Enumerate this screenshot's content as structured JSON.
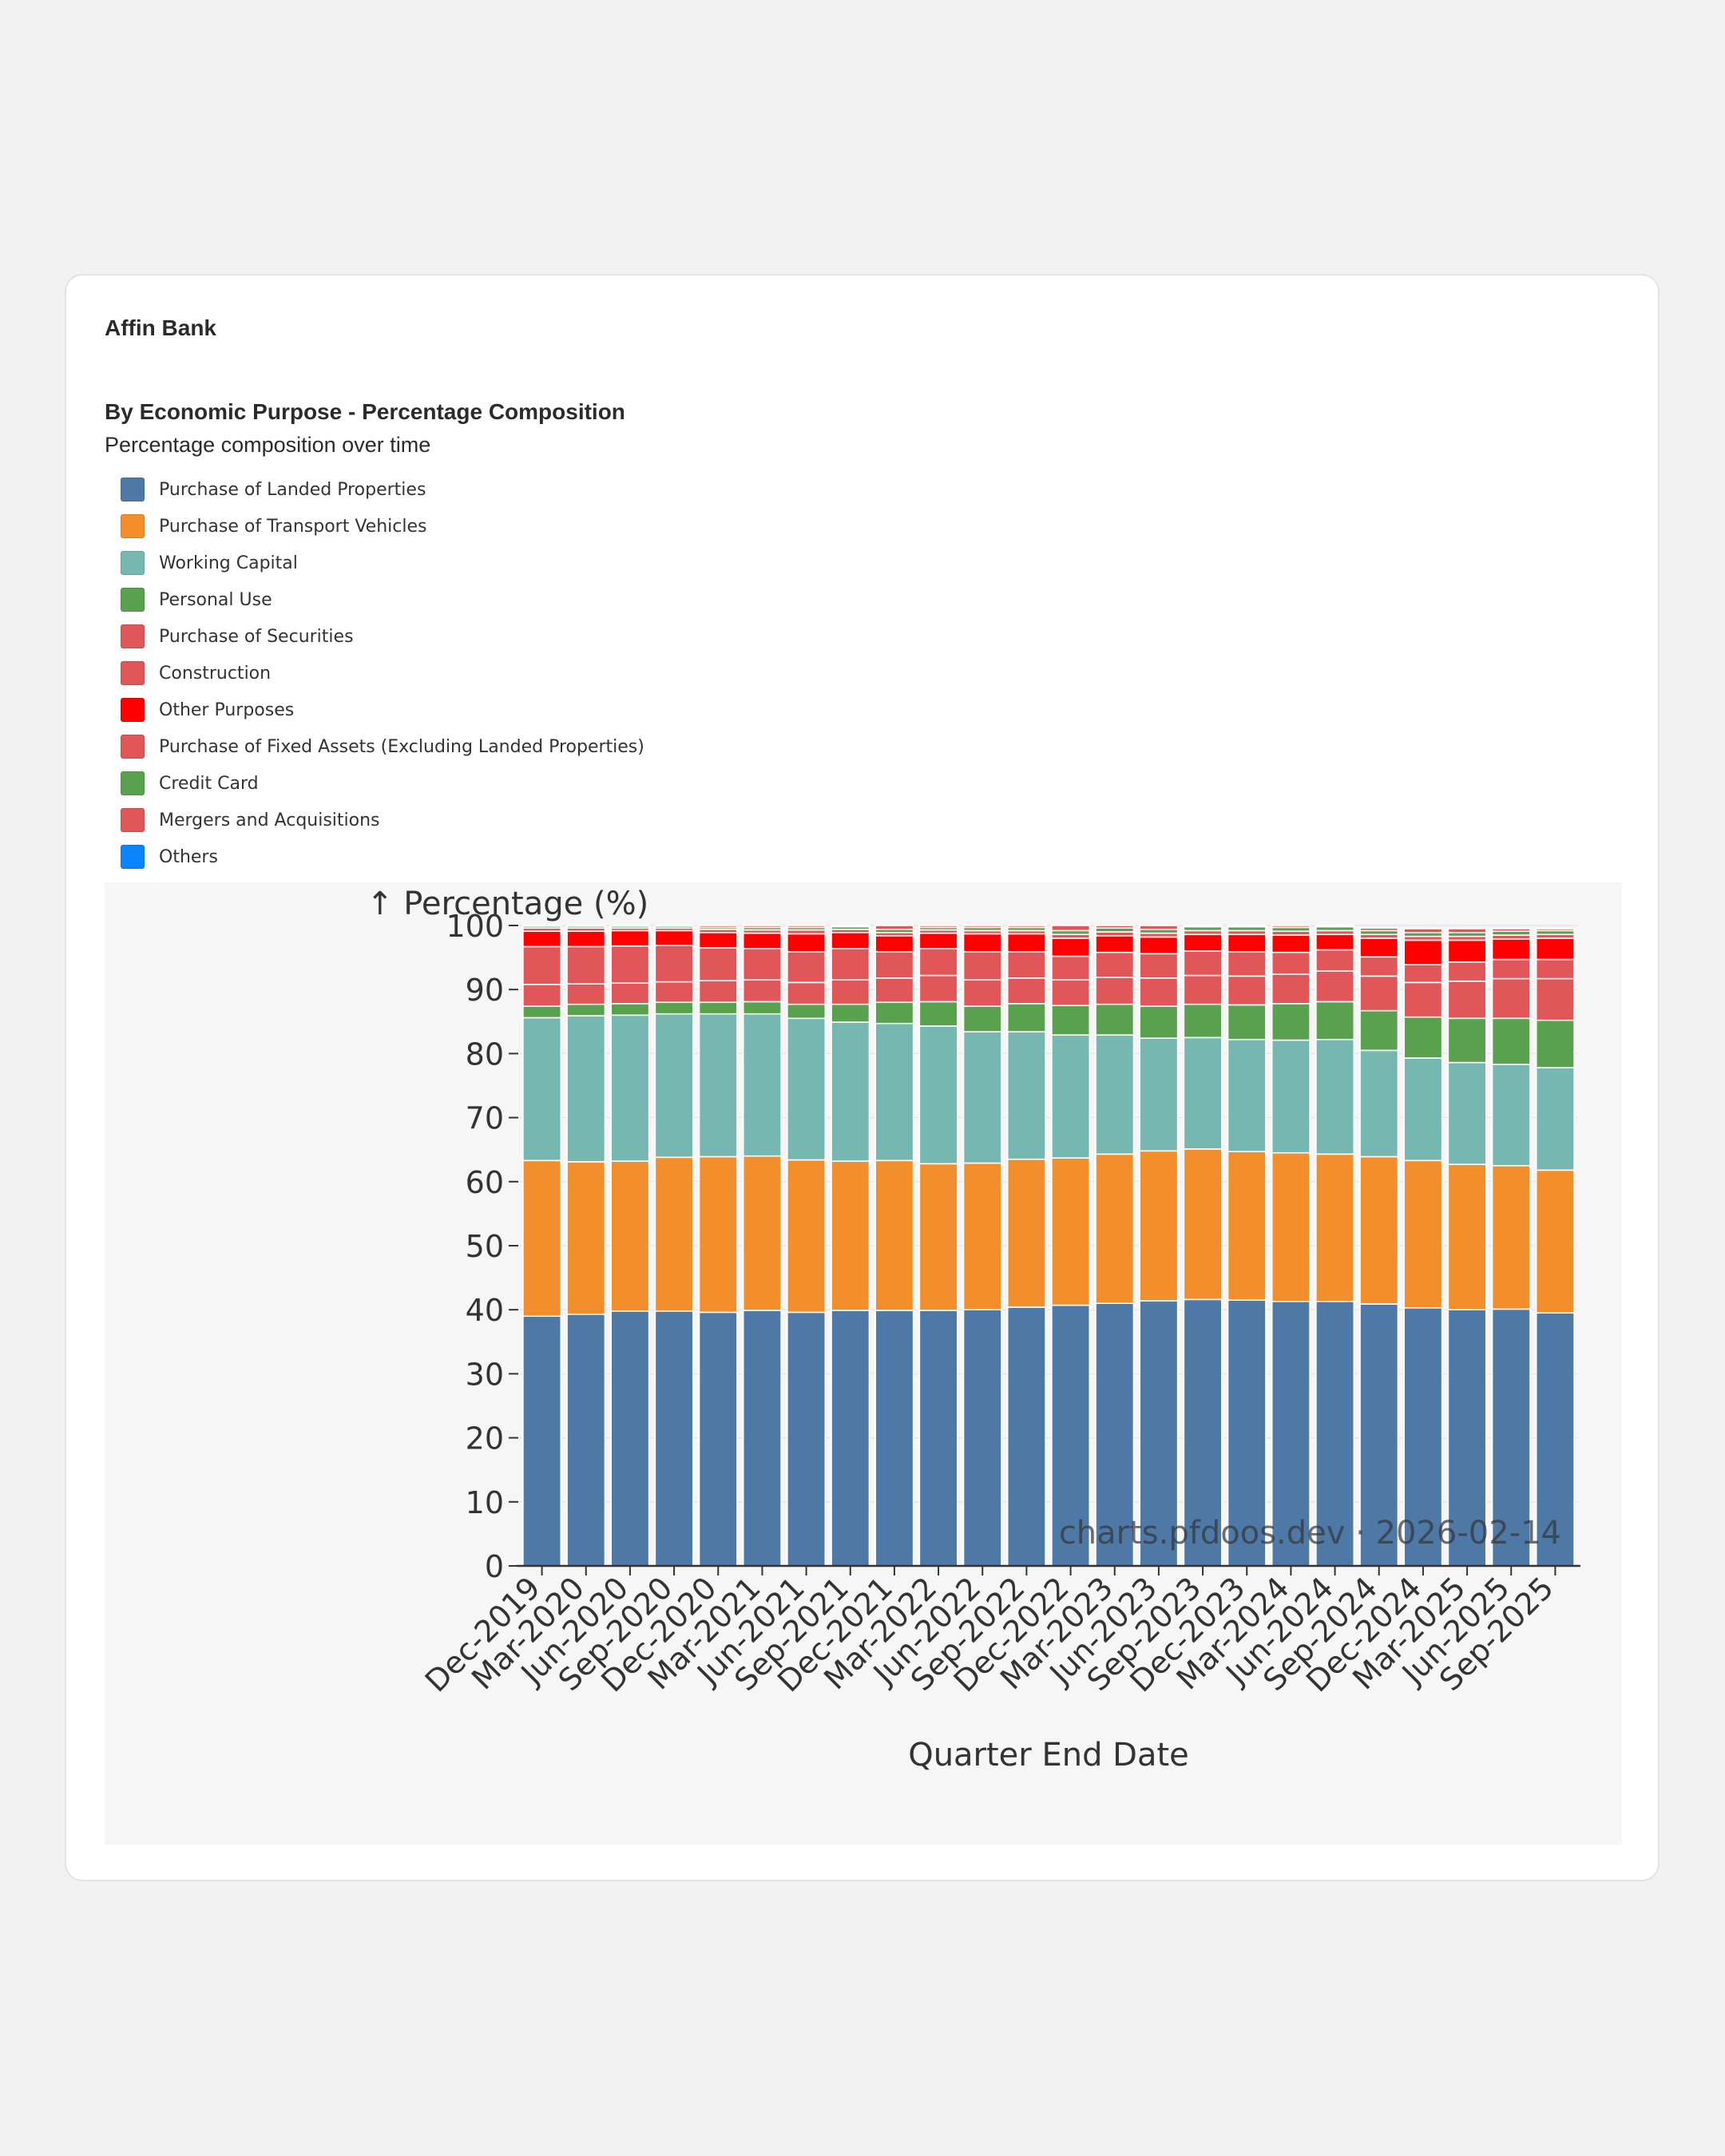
{
  "header": {
    "bank_name": "Affin Bank",
    "chart_title": "By Economic Purpose - Percentage Composition",
    "chart_subtitle": "Percentage composition over time"
  },
  "chart_data": {
    "type": "bar",
    "stacked": true,
    "ylabel": "↑ Percentage (%)",
    "xlabel": "Quarter End Date",
    "ylim": [
      0,
      100
    ],
    "yticks": [
      0,
      10,
      20,
      30,
      40,
      50,
      60,
      70,
      80,
      90,
      100
    ],
    "grid": true,
    "legend_position": "top-left",
    "watermark": "charts.pfdoos.dev · 2026-02-14",
    "categories": [
      "Dec-2019",
      "Mar-2020",
      "Jun-2020",
      "Sep-2020",
      "Dec-2020",
      "Mar-2021",
      "Jun-2021",
      "Sep-2021",
      "Dec-2021",
      "Mar-2022",
      "Jun-2022",
      "Sep-2022",
      "Dec-2022",
      "Mar-2023",
      "Jun-2023",
      "Sep-2023",
      "Dec-2023",
      "Mar-2024",
      "Jun-2024",
      "Sep-2024",
      "Dec-2024",
      "Mar-2025",
      "Jun-2025",
      "Sep-2025"
    ],
    "series": [
      {
        "name": "Purchase of Landed Properties",
        "color": "#4e79a7",
        "values": [
          39.0,
          39.3,
          39.8,
          39.8,
          39.6,
          39.9,
          39.6,
          39.9,
          39.9,
          39.9,
          40.0,
          40.4,
          40.7,
          41.0,
          41.4,
          41.6,
          41.5,
          41.3,
          41.3,
          40.9,
          40.3,
          40.0,
          40.1,
          39.5
        ]
      },
      {
        "name": "Purchase of Transport Vehicles",
        "color": "#f28e2b",
        "values": [
          24.3,
          23.8,
          23.4,
          24.0,
          24.3,
          24.1,
          23.8,
          23.3,
          23.4,
          22.9,
          22.9,
          23.1,
          23.0,
          23.3,
          23.4,
          23.5,
          23.2,
          23.2,
          23.0,
          23.0,
          23.0,
          22.7,
          22.4,
          22.3
        ]
      },
      {
        "name": "Working Capital",
        "color": "#76b7b2",
        "values": [
          22.3,
          22.8,
          22.8,
          22.4,
          22.3,
          22.2,
          22.1,
          21.7,
          21.4,
          21.5,
          20.5,
          19.9,
          19.2,
          18.6,
          17.6,
          17.4,
          17.5,
          17.6,
          17.9,
          16.6,
          16.0,
          15.9,
          15.8,
          16.0
        ]
      },
      {
        "name": "Personal Use",
        "color": "#59a14f",
        "values": [
          1.8,
          1.8,
          1.8,
          1.8,
          1.8,
          1.9,
          2.2,
          2.8,
          3.3,
          3.8,
          4.0,
          4.4,
          4.6,
          4.8,
          5.0,
          5.2,
          5.4,
          5.7,
          5.9,
          6.2,
          6.4,
          6.9,
          7.2,
          7.4
        ]
      },
      {
        "name": "Purchase of Securities",
        "color": "#e15759",
        "values": [
          3.4,
          3.2,
          3.2,
          3.2,
          3.4,
          3.4,
          3.4,
          3.8,
          3.8,
          4.1,
          4.1,
          4.0,
          4.0,
          4.2,
          4.4,
          4.5,
          4.5,
          4.6,
          4.8,
          5.4,
          5.4,
          5.8,
          6.2,
          6.5
        ]
      },
      {
        "name": "Construction",
        "color": "#e15759",
        "values": [
          5.9,
          5.8,
          5.8,
          5.7,
          5.1,
          4.9,
          4.8,
          4.9,
          4.1,
          4.2,
          4.4,
          4.1,
          3.7,
          3.9,
          3.8,
          3.8,
          3.8,
          3.4,
          3.3,
          3.0,
          2.8,
          3.0,
          3.0,
          3.0
        ]
      },
      {
        "name": "Other Purposes",
        "color": "#ff0000",
        "values": [
          2.4,
          2.4,
          2.4,
          2.3,
          2.4,
          2.4,
          2.8,
          2.5,
          2.5,
          2.4,
          2.8,
          2.8,
          2.8,
          2.6,
          2.6,
          2.6,
          2.7,
          2.7,
          2.4,
          2.9,
          3.8,
          3.4,
          3.2,
          3.3
        ]
      },
      {
        "name": "Purchase of Fixed Assets (Excluding Landed Properties)",
        "color": "#e15759",
        "values": [
          0.5,
          0.5,
          0.4,
          0.4,
          0.5,
          0.5,
          0.6,
          0.5,
          0.5,
          0.5,
          0.5,
          0.5,
          0.6,
          0.6,
          0.6,
          0.6,
          0.6,
          0.6,
          0.6,
          0.6,
          0.6,
          0.6,
          0.6,
          0.6
        ]
      },
      {
        "name": "Credit Card",
        "color": "#59a14f",
        "values": [
          0.3,
          0.3,
          0.3,
          0.3,
          0.3,
          0.4,
          0.4,
          0.4,
          0.5,
          0.4,
          0.5,
          0.5,
          0.6,
          0.6,
          0.6,
          0.6,
          0.6,
          0.6,
          0.6,
          0.6,
          0.6,
          0.6,
          0.6,
          0.6
        ]
      },
      {
        "name": "Mergers and Acquisitions",
        "color": "#e15759",
        "values": [
          0.1,
          0.1,
          0.1,
          0.1,
          0.3,
          0.3,
          0.3,
          0.2,
          0.6,
          0.3,
          0.3,
          0.3,
          0.8,
          0.4,
          0.6,
          0.2,
          0.2,
          0.3,
          0.2,
          0.4,
          0.6,
          0.6,
          0.4,
          0.3
        ]
      },
      {
        "name": "Others",
        "color": "#0a84ff",
        "values": [
          0,
          0,
          0,
          0,
          0,
          0,
          0,
          0,
          0,
          0,
          0,
          0,
          0,
          0,
          0,
          0,
          0,
          0,
          0,
          0,
          0,
          0,
          0,
          0
        ]
      }
    ]
  }
}
